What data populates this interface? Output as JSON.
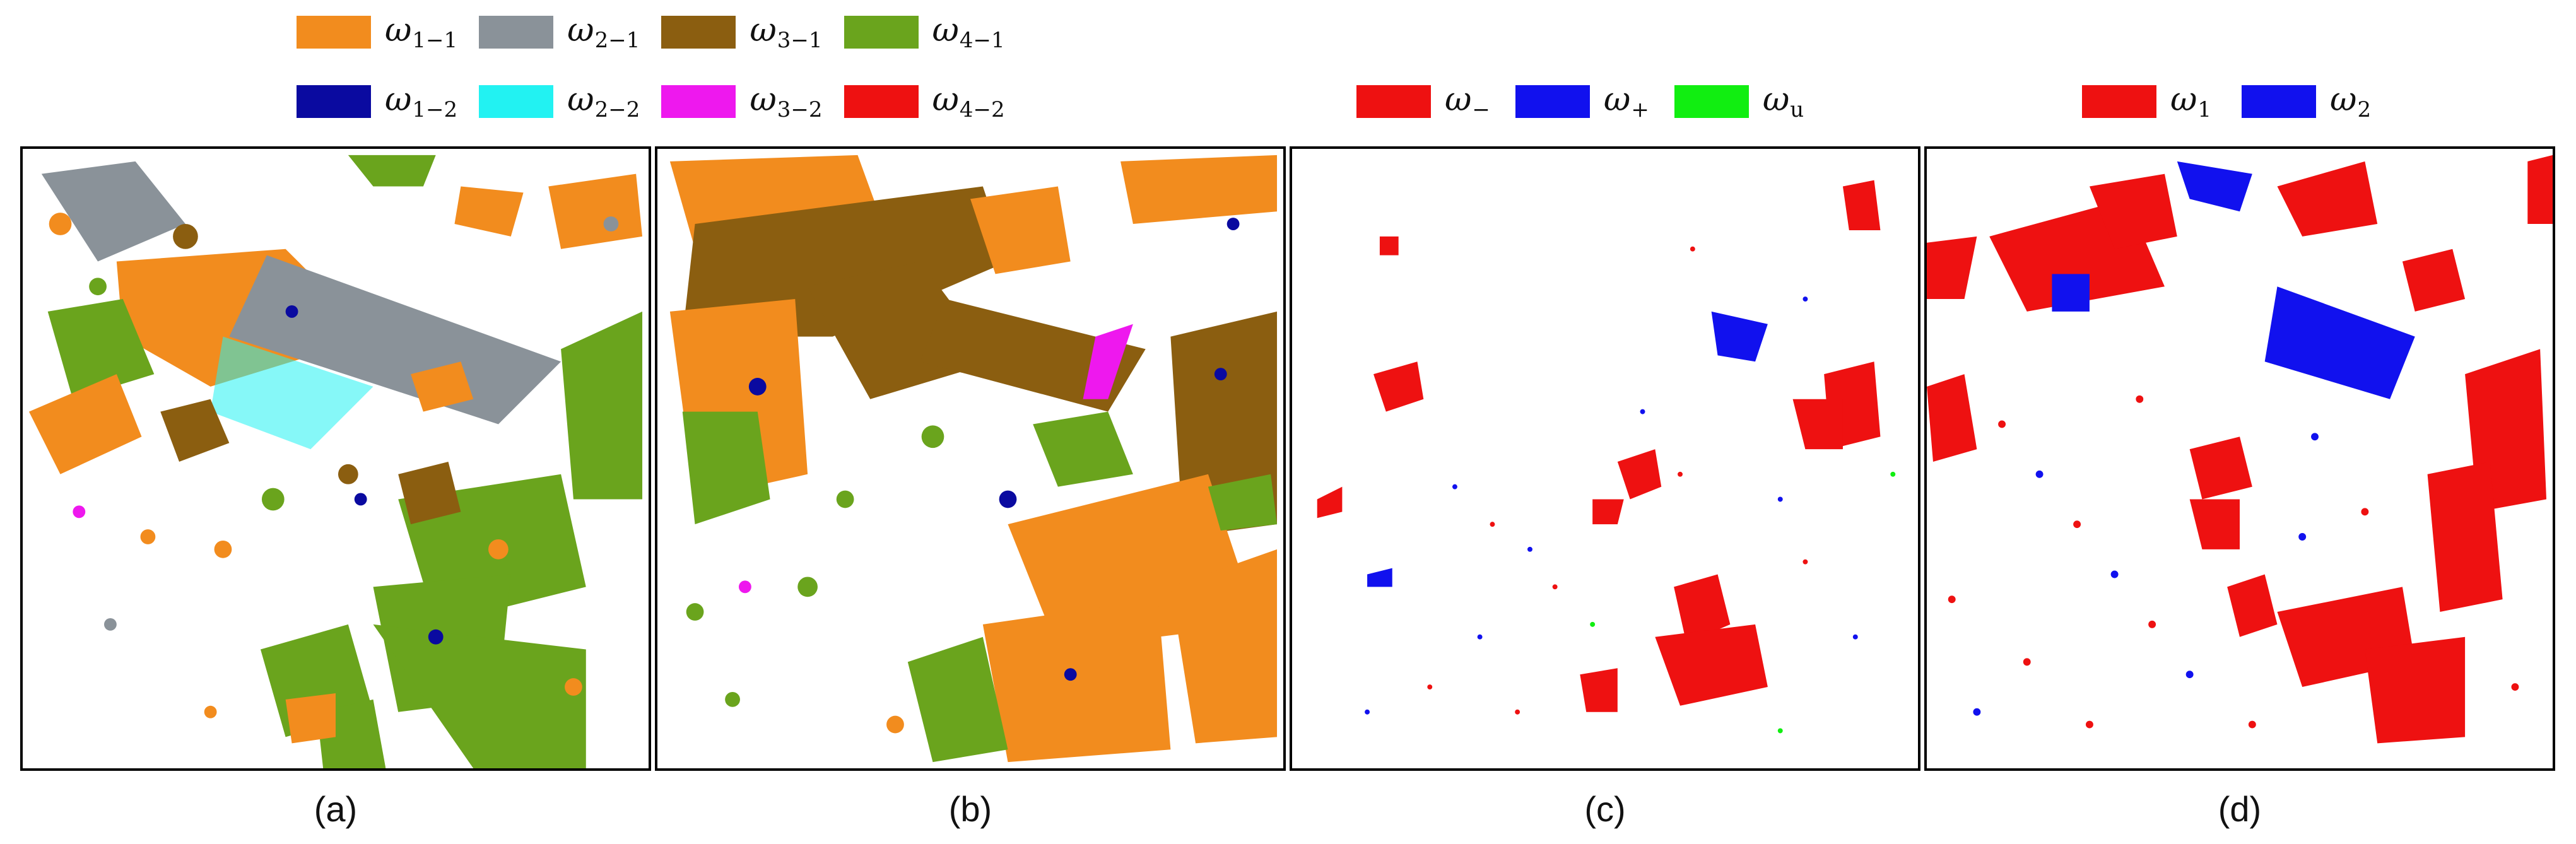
{
  "legend_ab": {
    "row1": [
      {
        "sym": "ω",
        "sub": "1−1",
        "color": "#F28C1E"
      },
      {
        "sym": "ω",
        "sub": "2−1",
        "color": "#8A9299"
      },
      {
        "sym": "ω",
        "sub": "3−1",
        "color": "#8B5E10"
      },
      {
        "sym": "ω",
        "sub": "4−1",
        "color": "#6AA41D"
      }
    ],
    "row2": [
      {
        "sym": "ω",
        "sub": "1−2",
        "color": "#0A0AA0"
      },
      {
        "sym": "ω",
        "sub": "2−2",
        "color": "#22F2F2"
      },
      {
        "sym": "ω",
        "sub": "3−2",
        "color": "#EE18EE"
      },
      {
        "sym": "ω",
        "sub": "4−2",
        "color": "#EE1111"
      }
    ]
  },
  "legend_c": [
    {
      "sym": "ω",
      "sub": "−",
      "color": "#EE1111"
    },
    {
      "sym": "ω",
      "sub": "+",
      "color": "#1111EE"
    },
    {
      "sym": "ω",
      "sub": "u",
      "color": "#11EE11"
    }
  ],
  "legend_d": [
    {
      "sym": "ω",
      "sub": "1",
      "color": "#EE1111"
    },
    {
      "sym": "ω",
      "sub": "2",
      "color": "#1111EE"
    }
  ],
  "captions": {
    "a": "(a)",
    "b": "(b)",
    "c": "(c)",
    "d": "(d)"
  },
  "colors": {
    "orange": "#F28C1E",
    "gray": "#8A9299",
    "brown": "#8B5E10",
    "green": "#6AA41D",
    "navy": "#0A0AA0",
    "cyan": "#22F2F2",
    "magenta": "#EE18EE",
    "red": "#EE1111",
    "blue": "#1111EE",
    "lime": "#11EE11"
  }
}
